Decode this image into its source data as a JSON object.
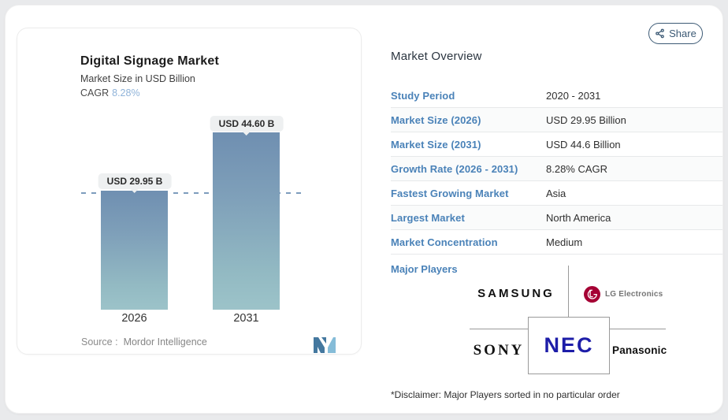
{
  "share": {
    "label": "Share"
  },
  "chart_card": {
    "title": "Digital Signage Market",
    "subtitle": "Market Size in USD Billion",
    "cagr_label": "CAGR",
    "cagr_value": "8.28%",
    "source_label": "Source :",
    "source_value": "Mordor Intelligence"
  },
  "chart_data": {
    "type": "bar",
    "title": "Digital Signage Market",
    "ylabel": "Market Size in USD Billion",
    "categories": [
      "2026",
      "2031"
    ],
    "values": [
      29.95,
      44.6
    ],
    "bar_labels": [
      "USD 29.95 B",
      "USD 44.60 B"
    ],
    "cagr": "8.28%",
    "reference_line": 29.95,
    "grid": false,
    "legend": false
  },
  "overview": {
    "heading": "Market Overview",
    "rows": [
      {
        "label": "Study Period",
        "value": "2020 - 2031"
      },
      {
        "label": "Market Size (2026)",
        "value": "USD 29.95 Billion"
      },
      {
        "label": "Market Size (2031)",
        "value": "USD 44.6 Billion"
      },
      {
        "label": "Growth Rate (2026 - 2031)",
        "value": "8.28% CAGR"
      },
      {
        "label": "Fastest Growing Market",
        "value": "Asia"
      },
      {
        "label": "Largest Market",
        "value": "North America"
      },
      {
        "label": "Market Concentration",
        "value": "Medium"
      }
    ],
    "major_players_label": "Major Players",
    "players": {
      "samsung": "SAMSUNG",
      "lg": "LG Electronics",
      "sony": "SONY",
      "nec": "NEC",
      "panasonic": "Panasonic"
    },
    "disclaimer": "*Disclaimer: Major Players sorted in no particular order"
  },
  "colors": {
    "label_blue": "#4a82b8",
    "cagr_blue": "#8fb3d9",
    "share_navy": "#3c5a75",
    "bar_gradient_top": "#6f8fb1",
    "bar_gradient_bottom": "#9cc3c9",
    "dashed_line": "#7d9cbd",
    "lg_red": "#a50034",
    "nec_blue": "#1d1da8",
    "page_background": "#e9eaec"
  }
}
